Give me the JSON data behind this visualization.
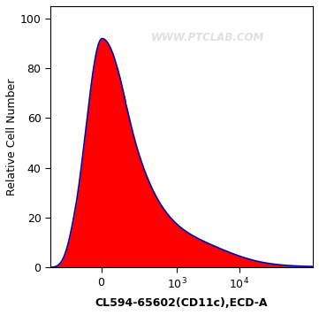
{
  "title": "",
  "xlabel": "CL594-65602(CD11c),ECD-A",
  "ylabel": "Relative Cell Number",
  "watermark": "WWW.PTCLAB.COM",
  "fill_color": "#FF0000",
  "line_color": "#0000AA",
  "background_color": "#FFFFFF",
  "ylim": [
    0,
    105
  ],
  "yticks": [
    0,
    20,
    40,
    60,
    80,
    100
  ],
  "peak_y": 92,
  "linthresh": 150,
  "linscale": 0.35,
  "xlim_left": -400,
  "xlim_right": 150000,
  "xlabel_fontsize": 9,
  "ylabel_fontsize": 9,
  "xlabel_bold": true,
  "watermark_color": "#CCCCCC",
  "watermark_alpha": 0.6
}
